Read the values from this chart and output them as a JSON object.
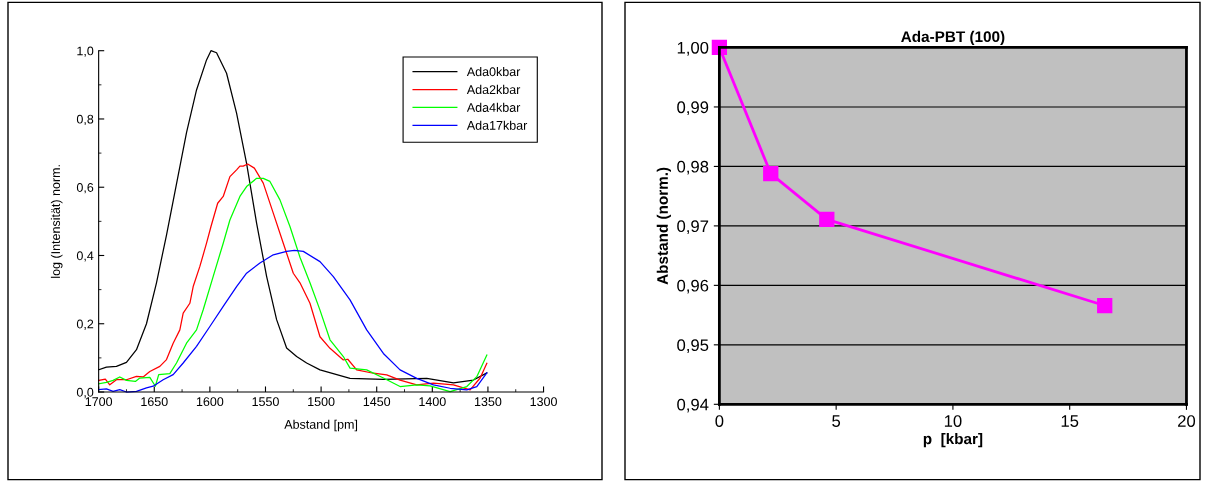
{
  "chart_data": [
    {
      "type": "line",
      "xlabel": "Abstand [pm]",
      "ylabel": "log (Intensität) norm.",
      "legend": "top right",
      "xlim": [
        1700,
        1300
      ],
      "xticks": [
        1700,
        1650,
        1600,
        1550,
        1500,
        1450,
        1400,
        1350,
        1300
      ],
      "ylim": [
        0,
        1.0
      ],
      "yticks": [
        {
          "value": 0,
          "label": "0,0"
        },
        {
          "value": 0.2,
          "label": "0,2"
        },
        {
          "value": 0.4,
          "label": "0,4"
        },
        {
          "value": 0.6,
          "label": "0,6"
        },
        {
          "value": 0.8,
          "label": "0,8"
        },
        {
          "value": 1.0,
          "label": "1,0"
        }
      ],
      "series": [
        {
          "name": "Ada0kbar",
          "color": "#000000",
          "x": [
            1700,
            1693,
            1684,
            1675,
            1666,
            1657,
            1648,
            1639,
            1630,
            1621,
            1612,
            1603,
            1599,
            1594,
            1585,
            1576,
            1567,
            1558,
            1549,
            1540,
            1531,
            1522,
            1513,
            1501,
            1474,
            1444,
            1405,
            1381,
            1363,
            1351
          ],
          "values": [
            0.065,
            0.073,
            0.075,
            0.087,
            0.124,
            0.2,
            0.32,
            0.46,
            0.61,
            0.76,
            0.885,
            0.973,
            1.0,
            0.994,
            0.934,
            0.817,
            0.67,
            0.495,
            0.339,
            0.212,
            0.129,
            0.104,
            0.085,
            0.065,
            0.04,
            0.037,
            0.04,
            0.027,
            0.035,
            0.056
          ]
        },
        {
          "name": "Ada2kbar",
          "color": "#ff0000",
          "x": [
            1700,
            1694,
            1690,
            1684,
            1675,
            1666,
            1660,
            1654,
            1645,
            1639,
            1633,
            1627,
            1624,
            1618,
            1615,
            1609,
            1603,
            1599,
            1593,
            1588,
            1582,
            1576,
            1573,
            1570,
            1566,
            1560,
            1552,
            1543,
            1534,
            1525,
            1519,
            1510,
            1501,
            1492,
            1480,
            1476,
            1468,
            1453,
            1441,
            1429,
            1414,
            1399,
            1381,
            1366,
            1357,
            1351
          ],
          "values": [
            0.034,
            0.038,
            0.021,
            0.036,
            0.036,
            0.046,
            0.044,
            0.06,
            0.075,
            0.095,
            0.143,
            0.182,
            0.231,
            0.26,
            0.309,
            0.368,
            0.436,
            0.485,
            0.553,
            0.573,
            0.631,
            0.651,
            0.662,
            0.662,
            0.668,
            0.656,
            0.612,
            0.524,
            0.436,
            0.348,
            0.32,
            0.26,
            0.162,
            0.128,
            0.094,
            0.096,
            0.065,
            0.055,
            0.05,
            0.035,
            0.021,
            0.026,
            0.021,
            0.006,
            0.041,
            0.084
          ]
        },
        {
          "name": "Ada4kbar",
          "color": "#00ff00",
          "x": [
            1700,
            1693,
            1687,
            1681,
            1675,
            1667,
            1663,
            1654,
            1649,
            1646,
            1636,
            1630,
            1621,
            1612,
            1606,
            1597,
            1588,
            1582,
            1573,
            1567,
            1558,
            1552,
            1546,
            1537,
            1528,
            1519,
            1510,
            1501,
            1492,
            1480,
            1474,
            1459,
            1444,
            1429,
            1414,
            1402,
            1384,
            1369,
            1360,
            1351
          ],
          "values": [
            0.024,
            0.028,
            0.034,
            0.044,
            0.034,
            0.031,
            0.041,
            0.043,
            0.017,
            0.051,
            0.054,
            0.085,
            0.143,
            0.182,
            0.241,
            0.339,
            0.436,
            0.504,
            0.573,
            0.602,
            0.626,
            0.626,
            0.617,
            0.563,
            0.485,
            0.395,
            0.32,
            0.24,
            0.153,
            0.104,
            0.07,
            0.065,
            0.041,
            0.016,
            0.021,
            0.018,
            0.001,
            0.016,
            0.045,
            0.108
          ]
        },
        {
          "name": "Ada17kbar",
          "color": "#0000ff",
          "x": [
            1700,
            1693,
            1687,
            1681,
            1675,
            1666,
            1657,
            1651,
            1642,
            1633,
            1624,
            1612,
            1600,
            1588,
            1576,
            1567,
            1555,
            1543,
            1531,
            1524,
            1516,
            1501,
            1489,
            1474,
            1459,
            1444,
            1429,
            1414,
            1399,
            1384,
            1369,
            1360,
            1351
          ],
          "values": [
            0.007,
            0.009,
            0.002,
            0.007,
            0.0,
            0.002,
            0.012,
            0.017,
            0.036,
            0.051,
            0.085,
            0.134,
            0.192,
            0.251,
            0.309,
            0.348,
            0.378,
            0.402,
            0.412,
            0.415,
            0.412,
            0.382,
            0.338,
            0.27,
            0.182,
            0.113,
            0.065,
            0.04,
            0.021,
            0.011,
            0.006,
            0.016,
            0.056
          ]
        }
      ]
    },
    {
      "type": "line",
      "title": "Ada-PBT (100)",
      "xlabel": "p  [kbar]",
      "ylabel": "Abstand (norm.)",
      "marker": "square",
      "grid": "y",
      "xlim": [
        0,
        20
      ],
      "xticks": [
        0,
        5,
        10,
        15,
        20
      ],
      "ylim": [
        0.94,
        1.0
      ],
      "yticks": [
        {
          "value": 0.94,
          "label": "0,94"
        },
        {
          "value": 0.95,
          "label": "0,95"
        },
        {
          "value": 0.96,
          "label": "0,96"
        },
        {
          "value": 0.97,
          "label": "0,97"
        },
        {
          "value": 0.98,
          "label": "0,98"
        },
        {
          "value": 0.99,
          "label": "0,99"
        },
        {
          "value": 1.0,
          "label": "1,00"
        }
      ],
      "series": [
        {
          "color": "#ff00ff",
          "x": [
            0,
            2.2,
            4.6,
            16.5
          ],
          "values": [
            1.0,
            0.9788,
            0.9711,
            0.9566
          ]
        }
      ]
    }
  ]
}
